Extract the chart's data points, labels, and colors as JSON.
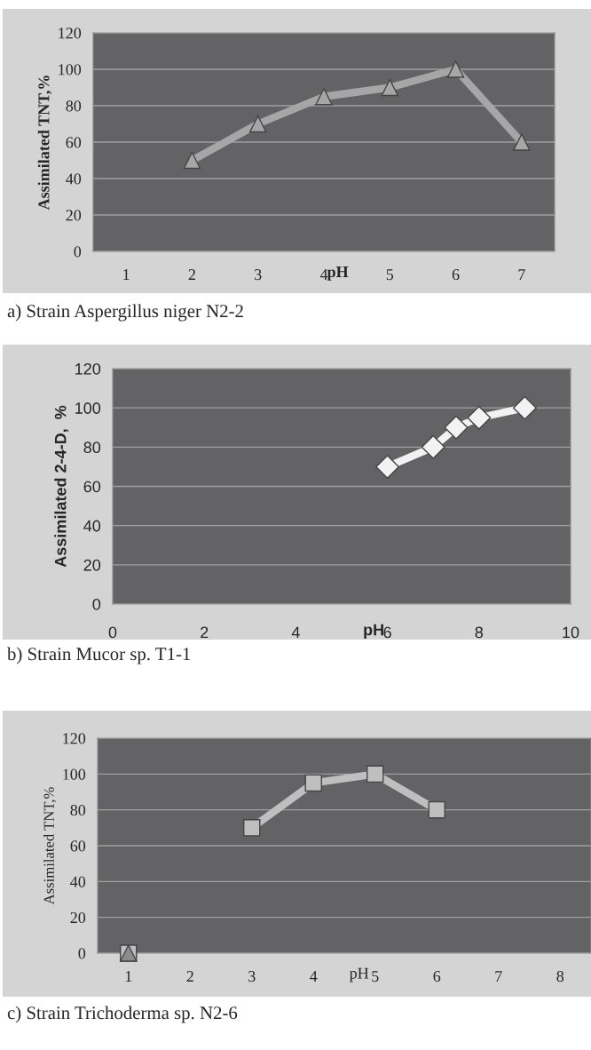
{
  "chart_data": [
    {
      "type": "line",
      "ylabel": "Assimilated TNT,%",
      "xlabel": "pH",
      "categories": [
        "1",
        "2",
        "3",
        "4",
        "5",
        "6",
        "7"
      ],
      "series": [
        {
          "color": "#a6a6a6",
          "values": [
            null,
            50,
            70,
            85,
            90,
            100,
            60
          ],
          "marker": "triangle"
        }
      ],
      "ylim": [
        0,
        120
      ],
      "yticks": [
        0,
        20,
        40,
        60,
        80,
        100,
        120
      ],
      "grid": "y",
      "annotations": [
        "a) Strain Aspergillus niger N2-2"
      ]
    },
    {
      "type": "line",
      "ylabel": "Assimilated 2-4-D,  %",
      "xlabel": "pH",
      "x": [
        6,
        7,
        7.5,
        8,
        9
      ],
      "series": [
        {
          "color": "#f2f2f2",
          "values": [
            70,
            80,
            90,
            95,
            100
          ],
          "marker": "diamond"
        }
      ],
      "xlim": [
        0,
        10
      ],
      "xticks": [
        0,
        2,
        4,
        6,
        8,
        10
      ],
      "ylim": [
        0,
        120
      ],
      "yticks": [
        0,
        20,
        40,
        60,
        80,
        100,
        120
      ],
      "grid": "y",
      "annotations": [
        "b) Strain Mucor sp. T1-1"
      ]
    },
    {
      "type": "line",
      "ylabel": "Assimilated TNT,%",
      "xlabel": "pH",
      "categories": [
        "1",
        "2",
        "3",
        "4",
        "5",
        "6",
        "7",
        "8"
      ],
      "series": [
        {
          "color": "#bfbfbf",
          "values": [
            0,
            null,
            70,
            95,
            100,
            80,
            null,
            null
          ],
          "marker": "square"
        },
        {
          "color": "#8c8c8c",
          "values": [
            0,
            null,
            null,
            null,
            null,
            null,
            null,
            null
          ],
          "marker": "triangle"
        }
      ],
      "ylim": [
        0,
        120
      ],
      "yticks": [
        0,
        20,
        40,
        60,
        80,
        100,
        120
      ],
      "grid": "y",
      "annotations": [
        "c) Strain Trichoderma sp. N2-6"
      ]
    }
  ]
}
